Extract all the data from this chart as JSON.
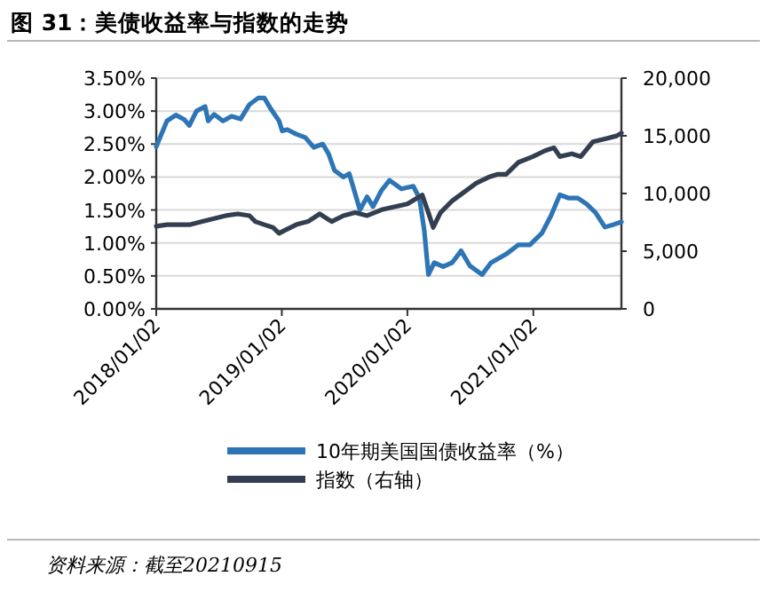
{
  "chart_data": {
    "type": "line",
    "title": "图 31：美债收益率与指数的走势",
    "xlim": [
      "2018-01-02",
      "2021-09-15"
    ],
    "xticks": [
      {
        "value": "2018-01-02",
        "label": "2018/01/02"
      },
      {
        "value": "2019-01-02",
        "label": "2019/01/02"
      },
      {
        "value": "2020-01-02",
        "label": "2020/01/02"
      },
      {
        "value": "2021-01-02",
        "label": "2021/01/02"
      }
    ],
    "ylim": [
      0,
      3.5
    ],
    "yticks": [
      {
        "value": 0,
        "label": "0.00%"
      },
      {
        "value": 0.5,
        "label": "0.50%"
      },
      {
        "value": 1,
        "label": "1.00%"
      },
      {
        "value": 1.5,
        "label": "1.50%"
      },
      {
        "value": 2,
        "label": "2.00%"
      },
      {
        "value": 2.5,
        "label": "2.50%"
      },
      {
        "value": 3,
        "label": "3.00%"
      },
      {
        "value": 3.5,
        "label": "3.50%"
      }
    ],
    "y2lim": [
      0,
      20000
    ],
    "y2ticks": [
      0,
      {
        "value": 5000,
        "label": "5,000"
      },
      {
        "value": 10000,
        "label": "10,000"
      },
      {
        "value": 15000,
        "label": "15,000"
      },
      {
        "value": 20000,
        "label": "20,000"
      }
    ],
    "grid": "y",
    "legend": "bottom",
    "marker": "none",
    "line_style": "solid",
    "series": [
      {
        "name": "10年期美国国债收益率（%）",
        "color": "#2e75b6",
        "x": [
          "2018-01-02",
          "2018-02-02",
          "2018-02-28",
          "2018-03-25",
          "2018-04-08",
          "2018-04-29",
          "2018-05-24",
          "2018-06-02",
          "2018-06-19",
          "2018-07-15",
          "2018-08-09",
          "2018-09-04",
          "2018-09-30",
          "2018-10-26",
          "2018-11-12",
          "2018-11-29",
          "2018-12-25",
          "2019-01-03",
          "2019-01-18",
          "2019-02-13",
          "2019-03-11",
          "2019-04-05",
          "2019-05-01",
          "2019-05-18",
          "2019-06-04",
          "2019-06-30",
          "2019-07-17",
          "2019-08-03",
          "2019-08-17",
          "2019-09-07",
          "2019-09-24",
          "2019-10-19",
          "2019-11-11",
          "2019-12-16",
          "2020-01-19",
          "2020-02-06",
          "2020-02-20",
          "2020-03-03",
          "2020-03-20",
          "2020-04-15",
          "2020-05-11",
          "2020-06-06",
          "2020-07-02",
          "2020-08-06",
          "2020-09-01",
          "2020-10-15",
          "2020-11-19",
          "2020-12-23",
          "2021-01-27",
          "2021-02-22",
          "2021-03-20",
          "2021-04-15",
          "2021-05-11",
          "2021-06-06",
          "2021-07-02",
          "2021-07-29",
          "2021-08-24",
          "2021-09-15"
        ],
        "values": [
          2.46,
          2.85,
          2.94,
          2.87,
          2.78,
          3.0,
          3.07,
          2.85,
          2.95,
          2.85,
          2.92,
          2.88,
          3.1,
          3.2,
          3.2,
          3.05,
          2.85,
          2.7,
          2.72,
          2.65,
          2.6,
          2.45,
          2.5,
          2.35,
          2.1,
          2.0,
          2.05,
          1.75,
          1.5,
          1.7,
          1.55,
          1.8,
          1.95,
          1.82,
          1.86,
          1.68,
          1.19,
          0.52,
          0.7,
          0.64,
          0.7,
          0.88,
          0.65,
          0.52,
          0.7,
          0.83,
          0.97,
          0.97,
          1.15,
          1.41,
          1.73,
          1.68,
          1.68,
          1.59,
          1.46,
          1.24,
          1.28,
          1.32
        ]
      },
      {
        "name": "指数（右轴）",
        "color": "#333f50",
        "axis": "y2",
        "x": [
          "2018-01-02",
          "2018-02-02",
          "2018-03-08",
          "2018-04-11",
          "2018-05-16",
          "2018-06-19",
          "2018-07-23",
          "2018-08-27",
          "2018-09-30",
          "2018-10-17",
          "2018-11-12",
          "2018-12-07",
          "2018-12-25",
          "2019-01-10",
          "2019-02-13",
          "2019-03-19",
          "2019-04-22",
          "2019-05-27",
          "2019-06-30",
          "2019-08-03",
          "2019-09-07",
          "2019-10-19",
          "2019-11-11",
          "2020-01-02",
          "2020-02-14",
          "2020-03-03",
          "2020-03-17",
          "2020-04-07",
          "2020-05-11",
          "2020-06-15",
          "2020-07-20",
          "2020-08-24",
          "2020-09-19",
          "2020-10-15",
          "2020-11-19",
          "2021-01-01",
          "2021-02-05",
          "2021-03-03",
          "2021-03-20",
          "2021-04-24",
          "2021-05-20",
          "2021-06-24",
          "2021-07-29",
          "2021-09-01",
          "2021-09-15"
        ],
        "values": [
          7160,
          7300,
          7300,
          7300,
          7570,
          7830,
          8080,
          8230,
          8080,
          7570,
          7300,
          7060,
          6550,
          6800,
          7300,
          7570,
          8230,
          7570,
          8080,
          8340,
          8080,
          8590,
          8750,
          9100,
          9870,
          8340,
          7060,
          8340,
          9360,
          10130,
          10900,
          11400,
          11660,
          11660,
          12690,
          13200,
          13710,
          13960,
          13200,
          13450,
          13200,
          14480,
          14730,
          14990,
          15240
        ]
      }
    ],
    "annotations": [
      "资料来源：截至20210915"
    ]
  }
}
